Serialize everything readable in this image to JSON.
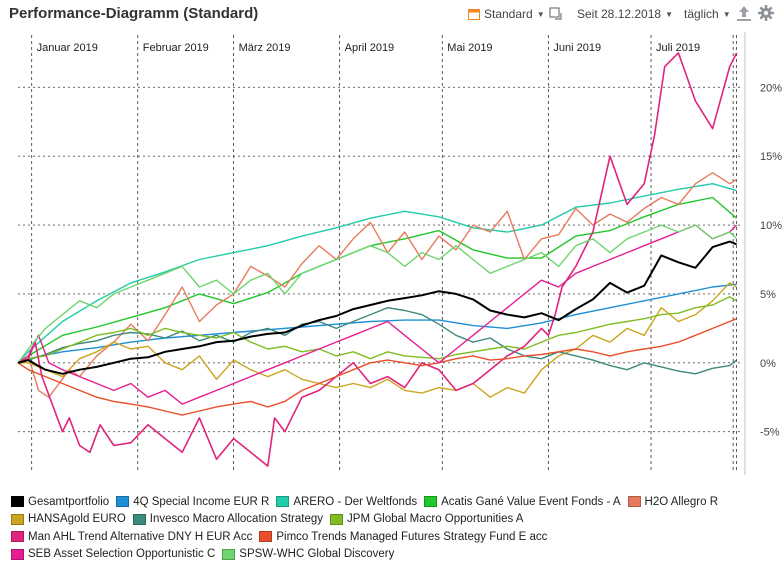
{
  "header": {
    "title": "Performance-Diagramm (Standard)",
    "view_label": "Standard",
    "since_label": "Seit 28.12.2018",
    "interval_label": "täglich"
  },
  "chart_data": {
    "type": "line",
    "title": "Performance-Diagramm (Standard)",
    "xlabel": "",
    "ylabel": "",
    "x_unit": "day of year 2019 (0 = 31.12.2018)",
    "xlim": [
      -3,
      208
    ],
    "ylim": [
      -8,
      23
    ],
    "y_ticks": [
      20,
      15,
      10,
      5,
      0,
      -5
    ],
    "y_tick_labels": [
      "20%",
      "15%",
      "10%",
      "5%",
      "0%",
      "-5%"
    ],
    "month_lines": [
      1,
      32,
      60,
      91,
      121,
      152,
      182
    ],
    "month_labels": [
      "Januar 2019",
      "Februar 2019",
      "März 2019",
      "April 2019",
      "Mai 2019",
      "Juni 2019",
      "Juli 2019"
    ],
    "end_markers": [
      206,
      207
    ],
    "series": [
      {
        "name": "Gesamtportfolio",
        "color": "#000000",
        "width": 2,
        "x": [
          -3,
          0,
          5,
          10,
          15,
          20,
          25,
          30,
          35,
          40,
          45,
          50,
          55,
          60,
          65,
          70,
          75,
          80,
          85,
          90,
          95,
          100,
          105,
          110,
          115,
          120,
          125,
          130,
          135,
          140,
          145,
          150,
          155,
          160,
          165,
          170,
          175,
          180,
          185,
          190,
          195,
          200,
          205,
          207
        ],
        "y": [
          0,
          0.2,
          -0.5,
          -0.8,
          -0.5,
          -0.3,
          0,
          0.3,
          0.4,
          0.8,
          1,
          1.2,
          1.5,
          1.6,
          1.9,
          2.1,
          2.2,
          2.7,
          3.1,
          3.4,
          3.9,
          4.2,
          4.5,
          4.7,
          4.9,
          5.2,
          5.0,
          4.6,
          3.8,
          3.5,
          3.3,
          3.6,
          3.1,
          3.9,
          4.6,
          5.8,
          5.1,
          5.6,
          7.8,
          7.3,
          6.9,
          8.4,
          8.8,
          8.6
        ]
      },
      {
        "name": "4Q Special Income EUR R",
        "color": "#1e8fd6",
        "width": 1.4,
        "x": [
          -3,
          0,
          10,
          20,
          30,
          40,
          50,
          60,
          70,
          80,
          90,
          100,
          110,
          120,
          130,
          140,
          150,
          160,
          170,
          180,
          190,
          200,
          207
        ],
        "y": [
          0,
          0.3,
          0.8,
          1.1,
          1.5,
          1.8,
          2.0,
          2.2,
          2.4,
          2.6,
          2.8,
          3.0,
          3.1,
          3.1,
          2.7,
          2.5,
          2.9,
          3.5,
          4.0,
          4.5,
          5.0,
          5.5,
          5.7
        ]
      },
      {
        "name": "ARERO - Der Weltfonds",
        "color": "#21cca8",
        "width": 1.4,
        "x": [
          -3,
          0,
          10,
          20,
          30,
          40,
          50,
          60,
          70,
          80,
          90,
          100,
          110,
          120,
          130,
          140,
          150,
          160,
          170,
          180,
          190,
          200,
          207
        ],
        "y": [
          0,
          0.8,
          3.0,
          4.5,
          5.8,
          6.6,
          7.5,
          8.0,
          8.5,
          9.2,
          9.8,
          10.5,
          11.0,
          10.6,
          9.8,
          9.5,
          10.0,
          11.3,
          11.6,
          12.1,
          12.6,
          13.0,
          12.5
        ]
      },
      {
        "name": "Acatis Gané Value Event Fonds - A",
        "color": "#21c629",
        "width": 1.4,
        "x": [
          -3,
          0,
          10,
          20,
          30,
          40,
          50,
          60,
          70,
          80,
          90,
          100,
          110,
          120,
          130,
          140,
          150,
          160,
          170,
          180,
          190,
          200,
          207
        ],
        "y": [
          0,
          0.5,
          2.0,
          2.6,
          3.3,
          4.0,
          5.0,
          4.3,
          5.1,
          6.5,
          7.5,
          8.5,
          9.0,
          9.6,
          8.2,
          7.6,
          7.6,
          9.2,
          9.6,
          10.6,
          11.5,
          12.0,
          10.5
        ]
      },
      {
        "name": "H2O Allegro R",
        "color": "#e77a5c",
        "width": 1.4,
        "x": [
          -3,
          0,
          3,
          6,
          9,
          12,
          15,
          20,
          25,
          30,
          35,
          40,
          45,
          50,
          55,
          60,
          65,
          70,
          75,
          80,
          85,
          90,
          95,
          100,
          105,
          110,
          115,
          120,
          125,
          130,
          135,
          140,
          145,
          150,
          155,
          160,
          165,
          170,
          175,
          180,
          185,
          190,
          195,
          200,
          205,
          207
        ],
        "y": [
          0,
          0.5,
          -2.0,
          -2.5,
          -1.5,
          -0.5,
          -1.0,
          0.5,
          1.5,
          2.8,
          1.6,
          3.5,
          5.5,
          3.0,
          4.2,
          5.0,
          7.0,
          6.3,
          5.5,
          7.2,
          8.5,
          7.5,
          9.0,
          10.2,
          8.0,
          9.5,
          7.5,
          9.2,
          8.2,
          10.0,
          9.5,
          11.0,
          7.5,
          9.0,
          9.3,
          11.2,
          10.0,
          10.8,
          10.2,
          11.2,
          12.0,
          11.5,
          13.0,
          13.8,
          13.0,
          13.3
        ]
      },
      {
        "name": "HANSAgold EURO",
        "color": "#cba51e",
        "width": 1.4,
        "x": [
          -3,
          0,
          5,
          10,
          15,
          20,
          25,
          30,
          35,
          40,
          45,
          50,
          55,
          60,
          65,
          70,
          75,
          80,
          85,
          90,
          95,
          100,
          105,
          110,
          115,
          120,
          125,
          130,
          135,
          140,
          145,
          150,
          155,
          160,
          165,
          170,
          175,
          180,
          185,
          190,
          195,
          200,
          205,
          207
        ],
        "y": [
          0,
          0,
          -0.5,
          -1.0,
          0.3,
          0.8,
          1.5,
          1.0,
          1.2,
          0.0,
          -0.5,
          0.5,
          -1.2,
          0.2,
          -0.5,
          -1.0,
          -0.5,
          -1.2,
          -1.5,
          -1.8,
          -1.5,
          -1.8,
          -1.2,
          -2.0,
          -2.2,
          -1.8,
          -2.0,
          -1.5,
          -2.5,
          -1.8,
          -2.2,
          -0.5,
          0.5,
          1.0,
          2.0,
          1.5,
          2.5,
          2.0,
          4.0,
          3.0,
          3.5,
          4.5,
          5.8,
          5.5
        ]
      },
      {
        "name": "Invesco Macro Allocation Strategy",
        "color": "#3c8a7c",
        "width": 1.4,
        "x": [
          -3,
          0,
          5,
          10,
          15,
          20,
          25,
          30,
          35,
          40,
          45,
          50,
          55,
          60,
          65,
          70,
          75,
          80,
          85,
          90,
          95,
          100,
          105,
          110,
          115,
          120,
          125,
          130,
          135,
          140,
          145,
          150,
          155,
          160,
          165,
          170,
          175,
          180,
          185,
          190,
          195,
          200,
          205,
          207
        ],
        "y": [
          0,
          0.2,
          0.6,
          1.1,
          1.4,
          1.6,
          2.0,
          2.2,
          2.1,
          1.8,
          2.3,
          1.6,
          2.0,
          1.5,
          2.2,
          2.5,
          2.0,
          2.8,
          3.0,
          2.5,
          3.0,
          3.5,
          4.0,
          3.8,
          3.5,
          2.8,
          2.0,
          1.5,
          1.8,
          1.0,
          0.5,
          0.3,
          0.8,
          0.5,
          0.2,
          -0.2,
          -0.5,
          0.0,
          -0.3,
          -0.6,
          -0.8,
          -0.4,
          -0.2,
          0.2
        ]
      },
      {
        "name": "JPM Global Macro Opportunities A",
        "color": "#80bc24",
        "width": 1.4,
        "x": [
          -3,
          0,
          5,
          10,
          15,
          20,
          25,
          30,
          35,
          40,
          45,
          50,
          55,
          60,
          65,
          70,
          75,
          80,
          85,
          90,
          95,
          100,
          105,
          110,
          115,
          120,
          125,
          130,
          135,
          140,
          145,
          150,
          155,
          160,
          165,
          170,
          175,
          180,
          185,
          190,
          195,
          200,
          205,
          207
        ],
        "y": [
          0,
          0.3,
          0.5,
          1.0,
          1.5,
          2.0,
          2.2,
          2.5,
          2.0,
          2.5,
          2.2,
          2.0,
          1.8,
          2.2,
          1.5,
          1.0,
          1.2,
          0.8,
          1.0,
          0.5,
          0.8,
          0.3,
          0.8,
          0.5,
          0.4,
          0.3,
          0.6,
          0.8,
          1.0,
          1.2,
          1.0,
          1.5,
          2.0,
          2.2,
          2.5,
          2.8,
          3.0,
          3.2,
          3.5,
          3.6,
          4.0,
          4.2,
          4.8,
          4.5
        ]
      },
      {
        "name": "Man AHL Trend Alternative DNY H EUR Acc",
        "color": "#e0247c",
        "width": 1.6,
        "x": [
          -3,
          0,
          2,
          4,
          7,
          10,
          12,
          15,
          18,
          21,
          25,
          30,
          35,
          40,
          45,
          50,
          55,
          60,
          65,
          70,
          72,
          75,
          80,
          85,
          90,
          95,
          100,
          105,
          110,
          115,
          120,
          125,
          130,
          135,
          140,
          145,
          150,
          152,
          154,
          156,
          160,
          165,
          170,
          175,
          180,
          183,
          186,
          190,
          195,
          200,
          205,
          207
        ],
        "y": [
          0,
          0.3,
          1.5,
          -1.0,
          -3.0,
          -5.0,
          -4.0,
          -6.0,
          -6.5,
          -4.5,
          -6.0,
          -5.8,
          -4.5,
          -5.5,
          -6.5,
          -4.0,
          -7.0,
          -5.5,
          -6.5,
          -7.5,
          -4.0,
          -5.0,
          -2.5,
          -2.0,
          -1.0,
          0.0,
          -1.5,
          -1.0,
          -1.8,
          0.0,
          -0.5,
          -2.0,
          -1.5,
          -0.5,
          0.5,
          1.2,
          2.5,
          2.0,
          3.5,
          5.5,
          7.0,
          9.5,
          15.0,
          11.5,
          13.0,
          16.5,
          21.5,
          22.5,
          19.0,
          17.0,
          21.5,
          22.5
        ]
      },
      {
        "name": "Pimco Trends Managed Futures Strategy Fund E acc",
        "color": "#ea4f2c",
        "width": 1.4,
        "x": [
          -3,
          0,
          5,
          10,
          15,
          20,
          25,
          30,
          35,
          40,
          45,
          50,
          55,
          60,
          65,
          70,
          75,
          80,
          85,
          90,
          95,
          100,
          105,
          110,
          115,
          120,
          125,
          130,
          135,
          140,
          145,
          150,
          155,
          160,
          165,
          170,
          175,
          180,
          185,
          190,
          195,
          200,
          205,
          207
        ],
        "y": [
          0,
          -0.5,
          -1.0,
          -1.5,
          -2.0,
          -2.5,
          -2.8,
          -3.0,
          -3.2,
          -3.5,
          -3.8,
          -3.5,
          -3.2,
          -3.0,
          -2.8,
          -3.2,
          -2.8,
          -2.0,
          -1.5,
          -1.0,
          -0.5,
          0.0,
          0.2,
          0.0,
          -0.2,
          0.0,
          0.3,
          0.5,
          0.2,
          0.3,
          0.5,
          0.6,
          0.8,
          1.0,
          0.8,
          0.5,
          0.8,
          1.0,
          1.2,
          1.5,
          2.0,
          2.5,
          3.0,
          3.2
        ]
      },
      {
        "name": "SEB Asset Selection Opportunistic C",
        "color": "#e61e91",
        "width": 1.4,
        "x": [
          -3,
          0,
          3,
          6,
          10,
          15,
          20,
          25,
          30,
          35,
          40,
          45,
          50,
          55,
          60,
          65,
          70,
          75,
          80,
          85,
          90,
          95,
          100,
          105,
          110,
          115,
          120,
          125,
          130,
          135,
          140,
          145,
          150,
          155,
          160,
          165,
          170,
          175,
          180,
          185,
          190,
          195,
          200,
          205,
          207
        ],
        "y": [
          0,
          0.5,
          2.0,
          0.0,
          -0.5,
          -1.0,
          -1.5,
          -2.0,
          -1.5,
          -2.5,
          -2.0,
          -3.0,
          -2.5,
          -2.0,
          -1.5,
          -1.0,
          -0.5,
          0.0,
          0.5,
          1.0,
          1.5,
          2.0,
          2.5,
          3.0,
          2.0,
          1.0,
          0.0,
          1.0,
          2.0,
          3.0,
          4.0,
          5.0,
          6.0,
          5.5,
          6.5,
          7.0,
          7.5,
          8.0,
          8.5,
          9.0,
          9.5,
          10.0,
          9.0,
          9.5,
          10.0
        ]
      },
      {
        "name": "SPSW-WHC Global Discovery",
        "color": "#6fd66f",
        "width": 1.4,
        "x": [
          -3,
          0,
          5,
          10,
          15,
          20,
          25,
          30,
          35,
          40,
          45,
          50,
          55,
          60,
          65,
          70,
          75,
          80,
          85,
          90,
          95,
          100,
          105,
          110,
          115,
          120,
          125,
          130,
          135,
          140,
          145,
          150,
          155,
          160,
          165,
          170,
          175,
          180,
          185,
          190,
          195,
          200,
          205,
          207
        ],
        "y": [
          0,
          1.0,
          2.5,
          3.5,
          4.5,
          4.0,
          5.0,
          5.5,
          6.0,
          6.5,
          7.0,
          5.5,
          6.0,
          5.0,
          6.0,
          6.5,
          5.0,
          6.5,
          7.0,
          7.5,
          8.0,
          8.5,
          8.0,
          7.0,
          8.0,
          7.5,
          8.5,
          7.5,
          6.5,
          7.0,
          7.5,
          8.0,
          7.0,
          8.5,
          9.0,
          8.0,
          9.0,
          9.5,
          10.0,
          9.5,
          10.0,
          9.0,
          9.5,
          9.0
        ]
      }
    ]
  }
}
